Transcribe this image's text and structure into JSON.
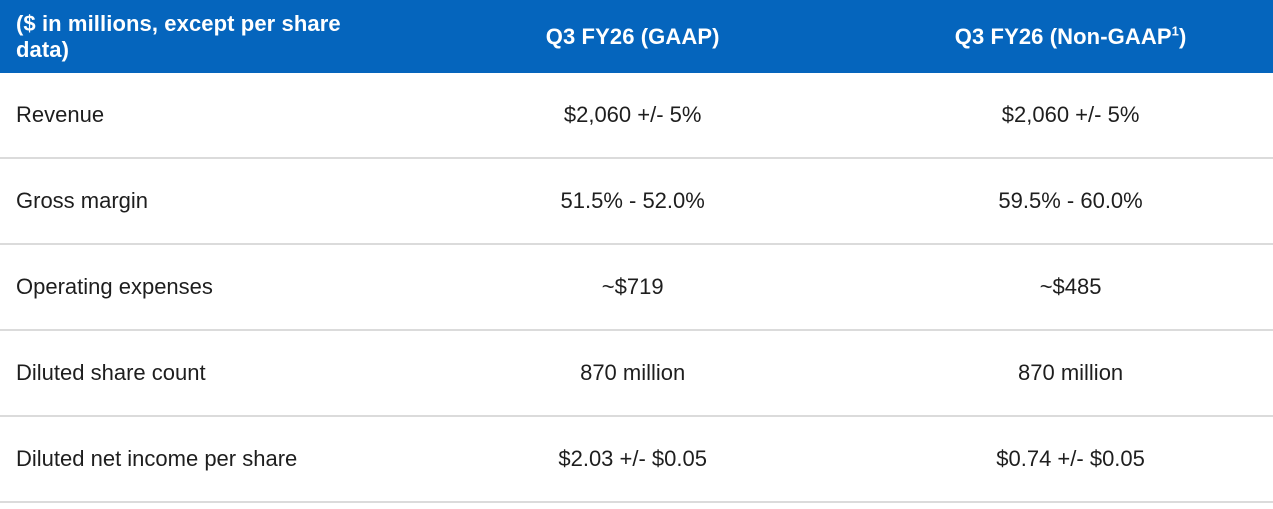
{
  "table": {
    "header": {
      "description": "($ in millions, except per share data)",
      "col_gaap": "Q3 FY26 (GAAP)",
      "col_non_gaap_prefix": "Q3 FY26 (Non-GAAP",
      "col_non_gaap_footnote": "1",
      "col_non_gaap_suffix": ")"
    },
    "rows": [
      {
        "label": "Revenue",
        "gaap": "$2,060 +/- 5%",
        "non_gaap": "$2,060 +/- 5%"
      },
      {
        "label": "Gross margin",
        "gaap": "51.5% - 52.0%",
        "non_gaap": "59.5% - 60.0%"
      },
      {
        "label": "Operating expenses",
        "gaap": "~$719",
        "non_gaap": "~$485"
      },
      {
        "label": "Diluted share count",
        "gaap": "870 million",
        "non_gaap": "870 million"
      },
      {
        "label": "Diluted net income per share",
        "gaap": "$2.03 +/- $0.05",
        "non_gaap": "$0.74 +/- $0.05"
      }
    ],
    "colors": {
      "header_bg": "#0565BD",
      "header_text": "#FFFFFF",
      "body_text": "#1E1E1E",
      "divider": "#DBDBDB",
      "page_bg": "#FFFFFF"
    }
  }
}
